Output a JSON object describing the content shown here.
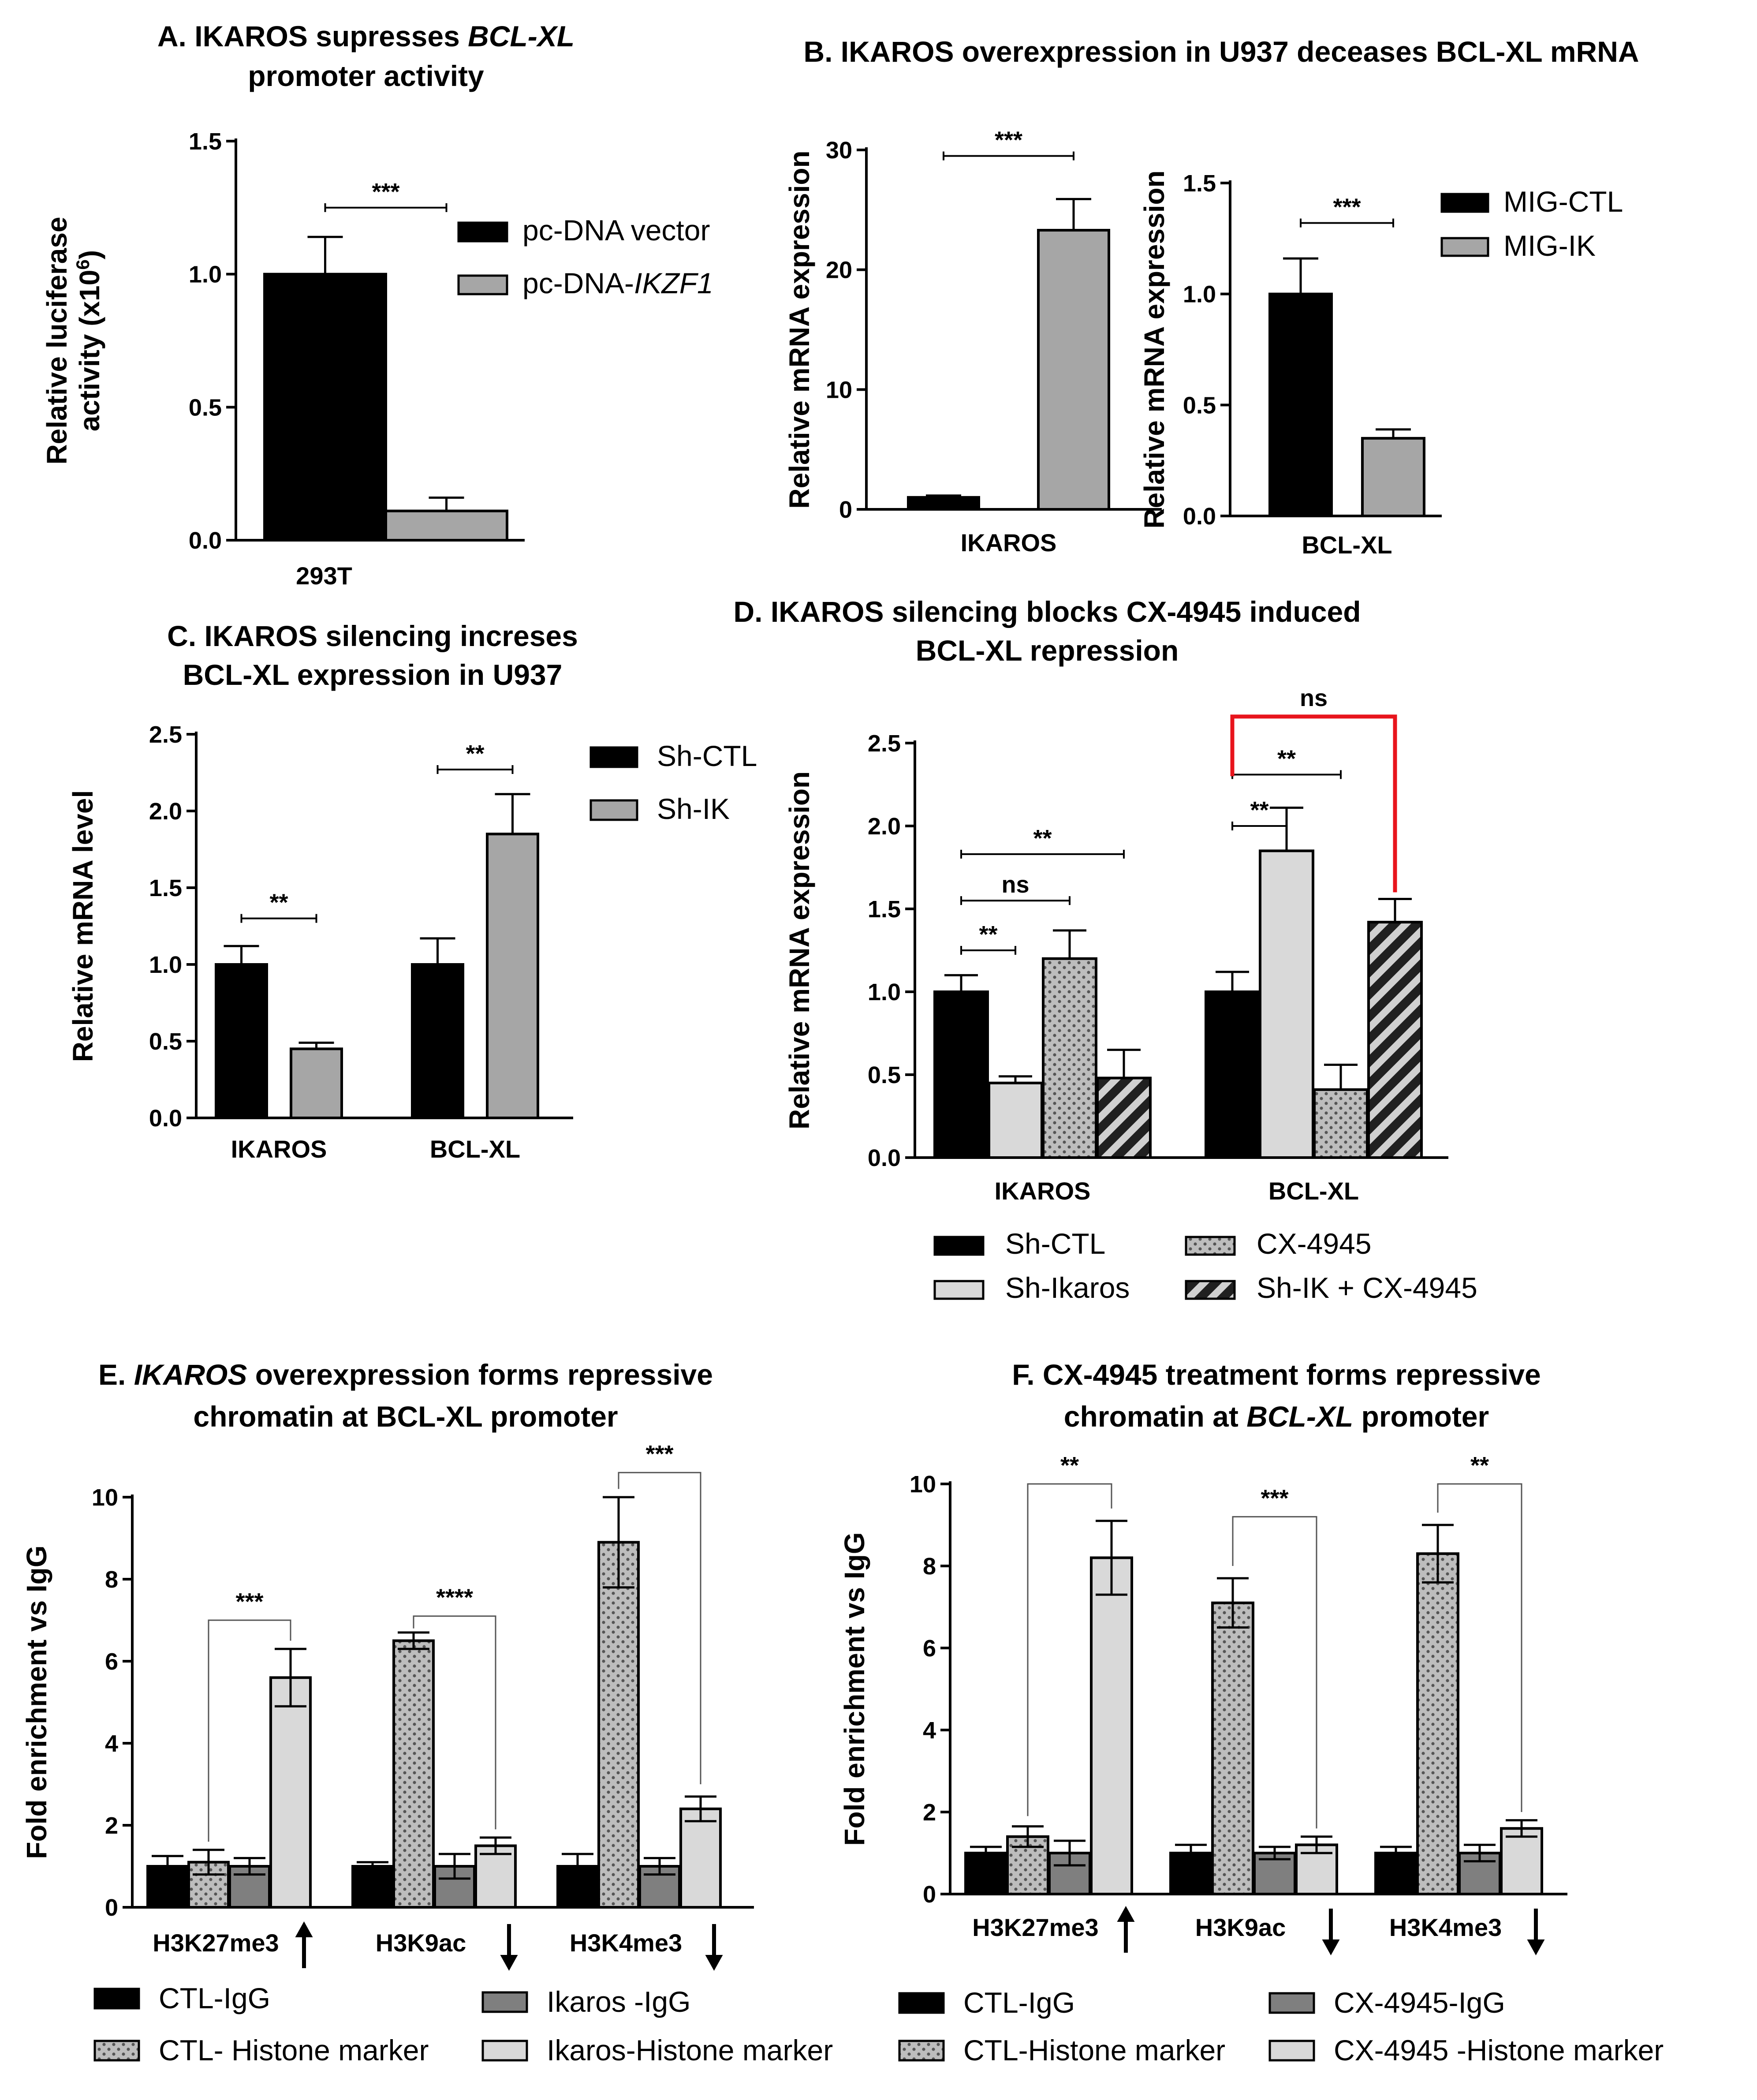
{
  "colors": {
    "black": "#000000",
    "gray": "#a6a6a6",
    "light_gray": "#d9d9d9",
    "dark_gray": "#7f7f7f",
    "dotted_gray": "#bdbdbd",
    "red": "#e8141c"
  },
  "chart_data": [
    {
      "id": "A",
      "type": "bar",
      "title_lines": [
        [
          {
            "t": "A. IKAROS supresses "
          },
          {
            "t": "BCL-XL",
            "i": true
          }
        ],
        [
          {
            "t": "promoter activity"
          }
        ]
      ],
      "ylabel_lines": [
        [
          {
            "t": "Relative luciferase"
          }
        ],
        [
          {
            "t": "activity (x10"
          },
          {
            "t": "6",
            "sup": true
          },
          {
            "t": ")"
          }
        ]
      ],
      "ylim": [
        0,
        1.5
      ],
      "yticks": [
        0.0,
        0.5,
        1.0,
        1.5
      ],
      "ytick_labels": [
        "0.0",
        "0.5",
        "1.0",
        "1.5"
      ],
      "categories": [
        "293T"
      ],
      "series": [
        {
          "name": [
            {
              "t": "pc-DNA vector"
            }
          ],
          "style": "black",
          "values": [
            1.0
          ],
          "errors": [
            0.14
          ]
        },
        {
          "name": [
            {
              "t": "pc-DNA-"
            },
            {
              "t": "IKZF1",
              "i": true
            }
          ],
          "style": "gray",
          "values": [
            0.11
          ],
          "errors": [
            0.05
          ]
        }
      ],
      "significance": [
        {
          "label": "***",
          "from": [
            0,
            0
          ],
          "to": [
            0,
            1
          ],
          "y": 1.25,
          "kind": "line"
        }
      ]
    },
    {
      "id": "B",
      "type": "bar",
      "title_lines": [
        [
          {
            "t": "B. IKAROS overexpression in U937 deceases BCL-XL mRNA"
          }
        ]
      ],
      "panels": [
        {
          "ylabel_lines": [
            [
              {
                "t": "Relative mRNA expression"
              }
            ]
          ],
          "ylim": [
            0,
            30
          ],
          "yticks": [
            0,
            10,
            20,
            30
          ],
          "ytick_labels": [
            "0",
            "10",
            "20",
            "30"
          ],
          "categories": [
            "IKAROS"
          ],
          "series": [
            {
              "style": "black",
              "values": [
                1.0
              ],
              "errors": [
                0.15
              ]
            },
            {
              "style": "gray",
              "values": [
                23.3
              ],
              "errors": [
                2.6
              ]
            }
          ],
          "significance": [
            {
              "label": "***",
              "from": [
                0,
                0
              ],
              "to": [
                0,
                1
              ],
              "y": 29.5,
              "kind": "line"
            }
          ]
        },
        {
          "ylabel_lines": [
            [
              {
                "t": "Relative mRNA expression"
              }
            ]
          ],
          "ylim": [
            0,
            1.5
          ],
          "yticks": [
            0.0,
            0.5,
            1.0,
            1.5
          ],
          "ytick_labels": [
            "0.0",
            "0.5",
            "1.0",
            "1.5"
          ],
          "categories": [
            "BCL-XL"
          ],
          "series": [
            {
              "style": "black",
              "values": [
                1.0
              ],
              "errors": [
                0.16
              ]
            },
            {
              "style": "gray",
              "values": [
                0.35
              ],
              "errors": [
                0.04
              ]
            }
          ],
          "significance": [
            {
              "label": "***",
              "from": [
                0,
                0
              ],
              "to": [
                0,
                1
              ],
              "y": 1.32,
              "kind": "line"
            }
          ]
        }
      ],
      "legend": [
        {
          "name": [
            {
              "t": "MIG-CTL"
            }
          ],
          "style": "black"
        },
        {
          "name": [
            {
              "t": "MIG-IK"
            }
          ],
          "style": "gray"
        }
      ]
    },
    {
      "id": "C",
      "type": "bar",
      "title_lines": [
        [
          {
            "t": "C. IKAROS silencing increses"
          }
        ],
        [
          {
            "t": "BCL-XL expression in U937"
          }
        ]
      ],
      "ylabel_lines": [
        [
          {
            "t": "Relative mRNA level"
          }
        ]
      ],
      "ylim": [
        0,
        2.5
      ],
      "yticks": [
        0.0,
        0.5,
        1.0,
        1.5,
        2.0,
        2.5
      ],
      "ytick_labels": [
        "0.0",
        "0.5",
        "1.0",
        "1.5",
        "2.0",
        "2.5"
      ],
      "categories": [
        "IKAROS",
        "BCL-XL"
      ],
      "series": [
        {
          "name": [
            {
              "t": "Sh-CTL"
            }
          ],
          "style": "black",
          "values": [
            1.0,
            1.0
          ],
          "errors": [
            0.12,
            0.17
          ]
        },
        {
          "name": [
            {
              "t": "Sh-IK"
            }
          ],
          "style": "gray",
          "values": [
            0.45,
            1.85
          ],
          "errors": [
            0.04,
            0.26
          ]
        }
      ],
      "significance": [
        {
          "label": "**",
          "from": [
            0,
            0
          ],
          "to": [
            0,
            1
          ],
          "y": 1.3,
          "kind": "line"
        },
        {
          "label": "**",
          "from": [
            1,
            0
          ],
          "to": [
            1,
            1
          ],
          "y": 2.27,
          "kind": "line"
        }
      ]
    },
    {
      "id": "D",
      "type": "bar",
      "title_lines": [
        [
          {
            "t": "D. IKAROS silencing blocks CX-4945 induced"
          }
        ],
        [
          {
            "t": "BCL-XL repression"
          }
        ]
      ],
      "ylabel_lines": [
        [
          {
            "t": "Relative mRNA expression"
          }
        ]
      ],
      "ylim": [
        0,
        2.5
      ],
      "yticks": [
        0.0,
        0.5,
        1.0,
        1.5,
        2.0,
        2.5
      ],
      "ytick_labels": [
        "0.0",
        "0.5",
        "1.0",
        "1.5",
        "2.0",
        "2.5"
      ],
      "categories": [
        "IKAROS",
        "BCL-XL"
      ],
      "series": [
        {
          "name": [
            {
              "t": "Sh-CTL"
            }
          ],
          "style": "black",
          "values": [
            1.0,
            1.0
          ],
          "errors": [
            0.1,
            0.12
          ]
        },
        {
          "name": [
            {
              "t": "Sh-Ikaros"
            }
          ],
          "style": "light",
          "values": [
            0.45,
            1.85
          ],
          "errors": [
            0.04,
            0.26
          ]
        },
        {
          "name": [
            {
              "t": "CX-4945"
            }
          ],
          "style": "dotted",
          "values": [
            1.2,
            0.41
          ],
          "errors": [
            0.17,
            0.15
          ]
        },
        {
          "name": [
            {
              "t": "Sh-IK + CX-4945"
            }
          ],
          "style": "hatched",
          "values": [
            0.48,
            1.42
          ],
          "errors": [
            0.17,
            0.14
          ]
        }
      ],
      "significance": [
        {
          "label": "**",
          "from": [
            0,
            0
          ],
          "to": [
            0,
            1
          ],
          "y": 1.25,
          "kind": "line",
          "big": true
        },
        {
          "label": "ns",
          "from": [
            0,
            0
          ],
          "to": [
            0,
            2
          ],
          "y": 1.55,
          "kind": "line"
        },
        {
          "label": "**",
          "from": [
            0,
            0
          ],
          "to": [
            0,
            3
          ],
          "y": 1.83,
          "kind": "line"
        },
        {
          "label": "**",
          "from": [
            1,
            0
          ],
          "to": [
            1,
            1
          ],
          "y": 2.0,
          "kind": "line",
          "big": true
        },
        {
          "label": "**",
          "from": [
            1,
            0
          ],
          "to": [
            1,
            2
          ],
          "y": 2.31,
          "kind": "line"
        },
        {
          "label": "ns",
          "from": [
            1,
            0
          ],
          "to": [
            1,
            3
          ],
          "y": 2.66,
          "kind": "bracket_red",
          "drop_left": 2.3,
          "drop_right": 1.6
        }
      ]
    },
    {
      "id": "E",
      "type": "bar",
      "title_lines": [
        [
          {
            "t": "E. "
          },
          {
            "t": "IKAROS",
            "i": true
          },
          {
            "t": " overexpression forms repressive"
          }
        ],
        [
          {
            "t": "chromatin at BCL-XL promoter"
          }
        ]
      ],
      "ylabel_lines": [
        [
          {
            "t": "Fold enrichment vs IgG"
          }
        ]
      ],
      "ylim": [
        0,
        10
      ],
      "yticks": [
        0,
        2,
        4,
        6,
        8,
        10
      ],
      "ytick_labels": [
        "0",
        "2",
        "4",
        "6",
        "8",
        "10"
      ],
      "categories": [
        "H3K27me3",
        "H3K9ac",
        "H3K4me3"
      ],
      "category_arrows": [
        "up",
        "down",
        "down"
      ],
      "series": [
        {
          "name": [
            {
              "t": "CTL-IgG"
            }
          ],
          "style": "black",
          "values": [
            1.0,
            1.0,
            1.0
          ],
          "errors": [
            0.25,
            0.1,
            0.3
          ]
        },
        {
          "name": [
            {
              "t": "CTL- Histone marker"
            }
          ],
          "style": "dotted",
          "values": [
            1.1,
            6.5,
            8.9
          ],
          "errors": [
            0.3,
            0.2,
            1.1
          ]
        },
        {
          "name": [
            {
              "t": "Ikaros -IgG"
            }
          ],
          "style": "dark",
          "values": [
            1.0,
            1.0,
            1.0
          ],
          "errors": [
            0.2,
            0.3,
            0.2
          ]
        },
        {
          "name": [
            {
              "t": "Ikaros-Histone marker"
            }
          ],
          "style": "light",
          "values": [
            5.6,
            1.5,
            2.4
          ],
          "errors": [
            0.7,
            0.2,
            0.3
          ]
        }
      ],
      "significance": [
        {
          "label": "***",
          "from": [
            0,
            1
          ],
          "to": [
            0,
            3
          ],
          "y": 7.0,
          "kind": "bracket_gray",
          "drop_left": 1.6,
          "drop_right": 6.5
        },
        {
          "label": "****",
          "from": [
            1,
            1
          ],
          "to": [
            1,
            3
          ],
          "y": 7.1,
          "kind": "bracket_gray",
          "drop_left": 6.8,
          "drop_right": 1.9
        },
        {
          "label": "***",
          "from": [
            2,
            1
          ],
          "to": [
            2,
            3
          ],
          "y": 10.6,
          "kind": "bracket_gray",
          "drop_left": 10.2,
          "drop_right": 3.0
        }
      ]
    },
    {
      "id": "F",
      "type": "bar",
      "title_lines": [
        [
          {
            "t": "F. CX-4945 treatment forms repressive"
          }
        ],
        [
          {
            "t": "chromatin at "
          },
          {
            "t": "BCL-XL",
            "i": true
          },
          {
            "t": " promoter"
          }
        ]
      ],
      "ylabel_lines": [
        [
          {
            "t": "Fold enrichment vs IgG"
          }
        ]
      ],
      "ylim": [
        0,
        10
      ],
      "yticks": [
        0,
        2,
        4,
        6,
        8,
        10
      ],
      "ytick_labels": [
        "0",
        "2",
        "4",
        "6",
        "8",
        "10"
      ],
      "categories": [
        "H3K27me3",
        "H3K9ac",
        "H3K4me3"
      ],
      "category_arrows": [
        "up",
        "down",
        "down"
      ],
      "series": [
        {
          "name": [
            {
              "t": "CTL-IgG"
            }
          ],
          "style": "black",
          "values": [
            1.0,
            1.0,
            1.0
          ],
          "errors": [
            0.15,
            0.2,
            0.15
          ]
        },
        {
          "name": [
            {
              "t": "CTL-Histone marker"
            }
          ],
          "style": "dotted",
          "values": [
            1.4,
            7.1,
            8.3
          ],
          "errors": [
            0.25,
            0.6,
            0.7
          ]
        },
        {
          "name": [
            {
              "t": "CX-4945-IgG"
            }
          ],
          "style": "dark",
          "values": [
            1.0,
            1.0,
            1.0
          ],
          "errors": [
            0.3,
            0.15,
            0.2
          ]
        },
        {
          "name": [
            {
              "t": "CX-4945 -Histone marker"
            }
          ],
          "style": "light",
          "values": [
            8.2,
            1.2,
            1.6
          ],
          "errors": [
            0.9,
            0.2,
            0.2
          ]
        }
      ],
      "significance": [
        {
          "label": "**",
          "from": [
            0,
            1
          ],
          "to": [
            0,
            3
          ],
          "y": 10.0,
          "kind": "bracket_gray",
          "drop_left": 1.9,
          "drop_right": 9.4
        },
        {
          "label": "***",
          "from": [
            1,
            1
          ],
          "to": [
            1,
            3
          ],
          "y": 9.2,
          "kind": "bracket_gray",
          "drop_left": 8.0,
          "drop_right": 1.6
        },
        {
          "label": "**",
          "from": [
            2,
            1
          ],
          "to": [
            2,
            3
          ],
          "y": 10.0,
          "kind": "bracket_gray",
          "drop_left": 9.3,
          "drop_right": 2.0
        }
      ]
    }
  ]
}
